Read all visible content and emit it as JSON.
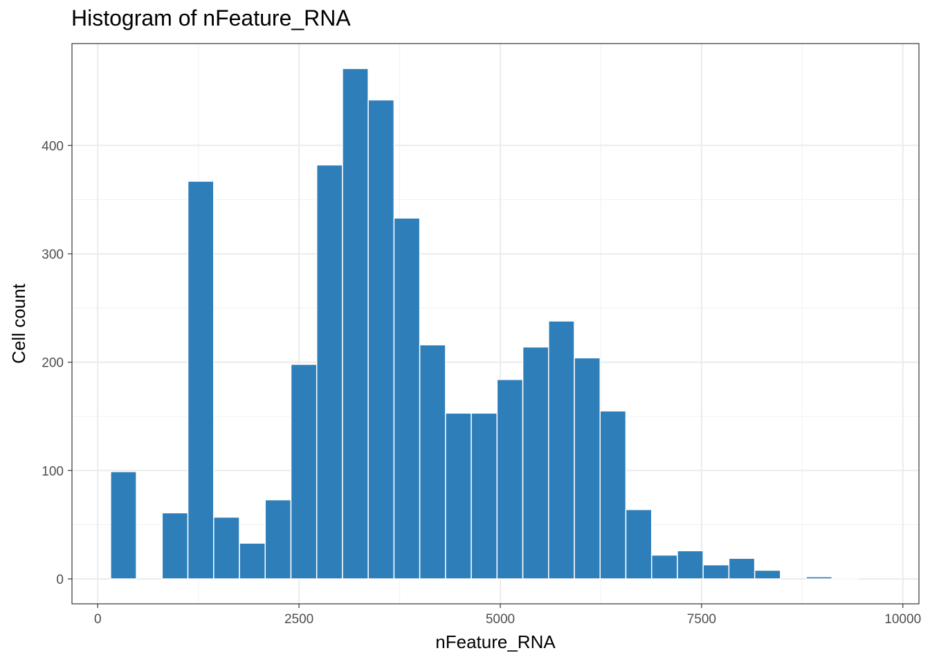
{
  "chart_data": {
    "type": "bar",
    "title": "Histogram of nFeature_RNA",
    "xlabel": "nFeature_RNA",
    "ylabel": "Cell count",
    "xlim": [
      -320,
      10200
    ],
    "ylim": [
      -23,
      494
    ],
    "x_ticks": [
      0,
      2500,
      5000,
      7500,
      10000
    ],
    "x_tick_labels": [
      "0",
      "2500",
      "5000",
      "7500",
      "10000"
    ],
    "y_ticks": [
      0,
      100,
      200,
      300,
      400
    ],
    "y_tick_labels": [
      "0",
      "100",
      "200",
      "300",
      "400"
    ],
    "grid": true,
    "bar_color": "#2E7EBA",
    "bin_width": 320,
    "bin_centers": [
      320,
      640,
      960,
      1280,
      1600,
      1920,
      2240,
      2560,
      2880,
      3200,
      3520,
      3840,
      4160,
      4480,
      4800,
      5120,
      5440,
      5760,
      6080,
      6400,
      6720,
      7040,
      7360,
      7680,
      8000,
      8320,
      8640,
      8960,
      9280,
      9600
    ],
    "values": [
      99,
      0,
      61,
      367,
      57,
      33,
      73,
      198,
      382,
      471,
      442,
      333,
      216,
      153,
      153,
      184,
      214,
      238,
      204,
      155,
      64,
      22,
      26,
      13,
      19,
      8,
      0,
      2,
      1,
      0
    ]
  }
}
